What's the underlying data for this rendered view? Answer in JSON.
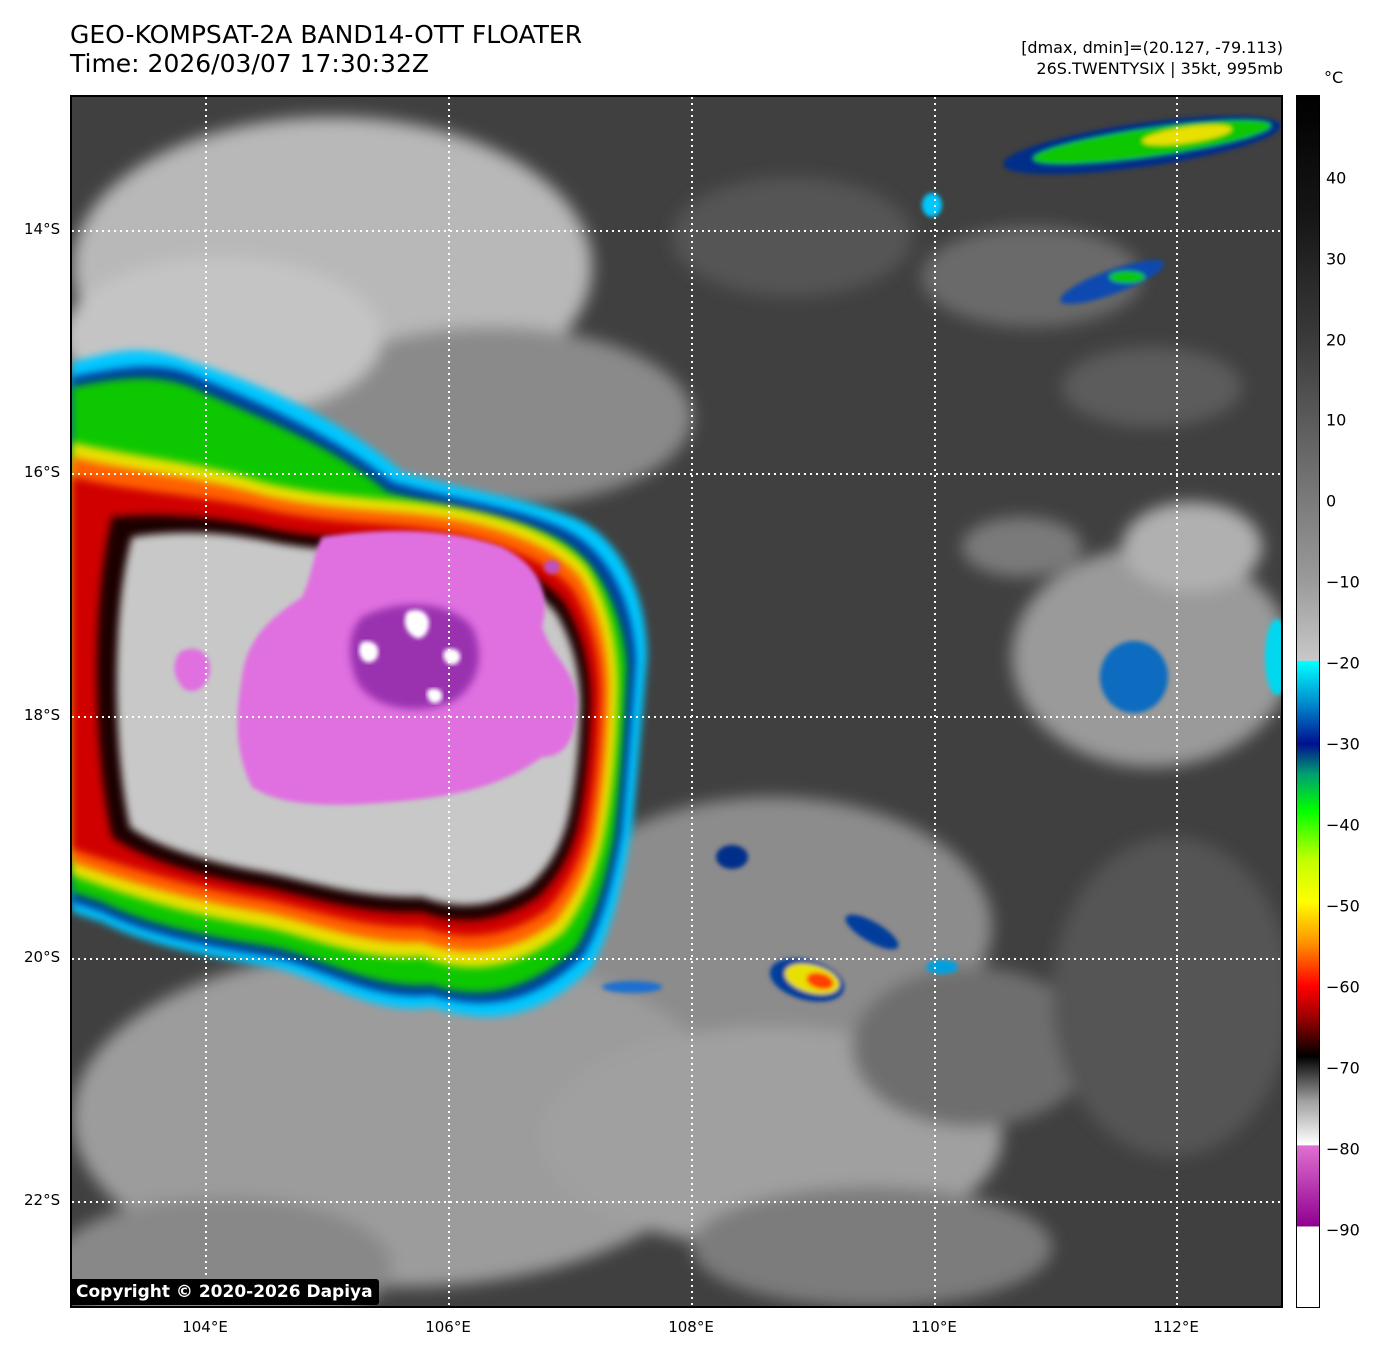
{
  "title": {
    "line1": "GEO-KOMPSAT-2A BAND14-OTT FLOATER",
    "line2": "Time: 2026/03/07 17:30:32Z"
  },
  "info": {
    "line1": "[dmax, dmin]=(20.127, -79.113)",
    "line2": "26S.TWENTYSIX | 35kt, 995mb"
  },
  "map": {
    "lat_labels": [
      "14°S",
      "16°S",
      "18°S",
      "20°S",
      "22°S"
    ],
    "lon_labels": [
      "104°E",
      "106°E",
      "108°E",
      "110°E",
      "112°E"
    ]
  },
  "colorbar": {
    "unit": "°C",
    "ticks": [
      "40",
      "30",
      "20",
      "10",
      "0",
      "−10",
      "−20",
      "−30",
      "−40",
      "−50",
      "−60",
      "−70",
      "−80",
      "−90"
    ]
  },
  "copyright": "Copyright © 2020-2026 Dapiya"
}
